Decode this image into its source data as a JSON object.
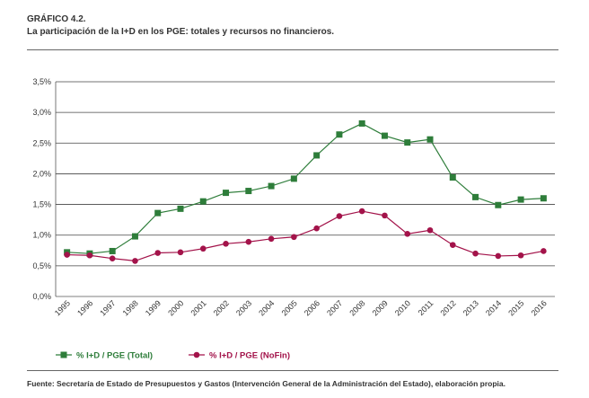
{
  "header": {
    "label": "GRÁFICO 4.2.",
    "title": "La participación de la I+D en los PGE: totales y recursos no financieros."
  },
  "footer": {
    "source": "Fuente: Secretaría de Estado de Presupuestos y Gastos (Intervención General de la Administración del Estado), elaboración propia."
  },
  "chart_data": {
    "type": "line",
    "x": [
      "1995",
      "1996",
      "1997",
      "1998",
      "1999",
      "2000",
      "2001",
      "2002",
      "2003",
      "2004",
      "2005",
      "2006",
      "2007",
      "2008",
      "2009",
      "2010",
      "2011",
      "2012",
      "2013",
      "2014",
      "2015",
      "2016"
    ],
    "ylim": [
      0,
      3.5
    ],
    "yticks": [
      0,
      0.5,
      1.0,
      1.5,
      2.0,
      2.5,
      3.0,
      3.5
    ],
    "ytick_labels": [
      "0,0%",
      "0,5%",
      "1,0%",
      "1,5%",
      "2,0%",
      "2,5%",
      "3,0%",
      "3,5%"
    ],
    "grid": true,
    "legend_position": "bottom-left",
    "series": [
      {
        "name": "% I+D / PGE (Total)",
        "color": "#2e7d3a",
        "marker": "square",
        "values": [
          0.72,
          0.7,
          0.74,
          0.98,
          1.36,
          1.43,
          1.55,
          1.69,
          1.72,
          1.8,
          1.92,
          2.3,
          2.64,
          2.82,
          2.62,
          2.51,
          2.56,
          1.94,
          1.62,
          1.49,
          1.58,
          1.6
        ]
      },
      {
        "name": "% I+D / PGE (NoFin)",
        "color": "#a3134a",
        "marker": "circle",
        "values": [
          0.68,
          0.67,
          0.62,
          0.58,
          0.71,
          0.72,
          0.78,
          0.86,
          0.89,
          0.94,
          0.97,
          1.11,
          1.31,
          1.39,
          1.32,
          1.02,
          1.08,
          0.84,
          0.7,
          0.66,
          0.67,
          0.74
        ]
      }
    ]
  }
}
